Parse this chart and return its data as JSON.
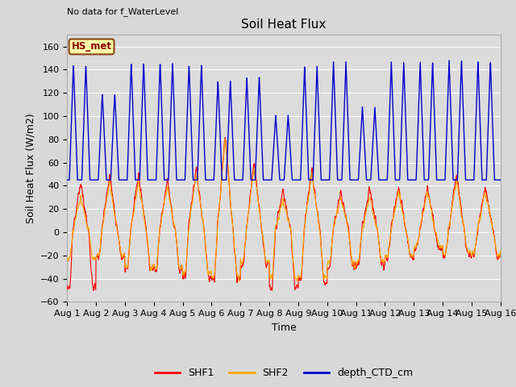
{
  "title": "Soil Heat Flux",
  "no_data_text": "No data for f_WaterLevel",
  "hs_met_label": "HS_met",
  "ylabel": "Soil Heat Flux (W/m2)",
  "xlabel": "Time",
  "xlim_days": [
    0,
    15
  ],
  "ylim": [
    -60,
    170
  ],
  "yticks": [
    -60,
    -40,
    -20,
    0,
    20,
    40,
    60,
    80,
    100,
    120,
    140,
    160
  ],
  "xtick_labels": [
    "Aug 1",
    "Aug 2",
    "Aug 3",
    "Aug 4",
    "Aug 5",
    "Aug 6",
    "Aug 7",
    "Aug 8",
    "Aug 9",
    "Aug 10",
    "Aug 11",
    "Aug 12",
    "Aug 13",
    "Aug 14",
    "Aug 15",
    "Aug 16"
  ],
  "legend_entries": [
    "SHF1",
    "SHF2",
    "depth_CTD_cm"
  ],
  "shf1_color": "#ff0000",
  "shf2_color": "#ffa500",
  "depth_color": "#0000cc",
  "fig_bg_color": "#d8d8d8",
  "ax_bg_color": "#dcdcdc",
  "grid_color": "#ffffff",
  "title_fontsize": 11,
  "label_fontsize": 9,
  "tick_fontsize": 8
}
